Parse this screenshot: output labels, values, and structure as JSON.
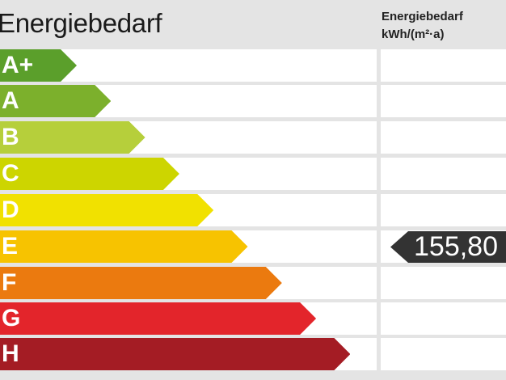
{
  "chart_data": {
    "type": "bar",
    "title": "Energiebedarf",
    "column_header": [
      "Energiebedarf",
      "kWh/(m²·a)"
    ],
    "categories": [
      "A+",
      "A",
      "B",
      "C",
      "D",
      "E",
      "F",
      "G",
      "H"
    ],
    "colors": [
      "#5b9f2b",
      "#7cb02c",
      "#b6cf3b",
      "#cdd500",
      "#f1e100",
      "#f7c300",
      "#eb7a0f",
      "#e3252b",
      "#a41c24"
    ],
    "value": "155,80",
    "value_class": "E"
  }
}
